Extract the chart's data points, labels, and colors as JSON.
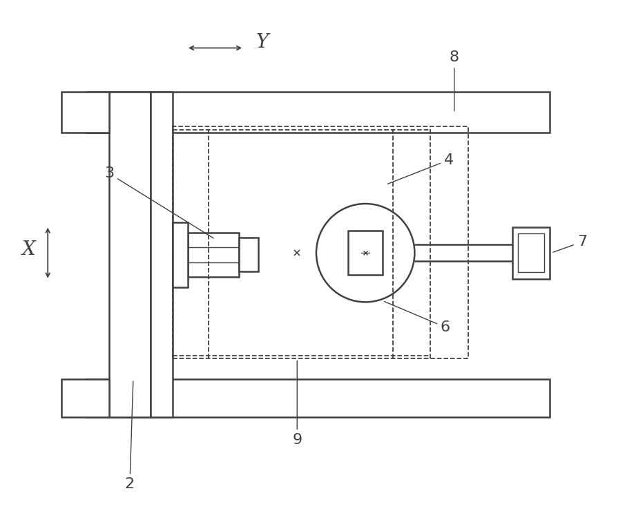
{
  "bg_color": "#ffffff",
  "line_color": "#404040",
  "fig_width": 9.05,
  "fig_height": 7.66,
  "dpi": 100,
  "lw_main": 1.8,
  "lw_dash": 1.3,
  "lw_thin": 1.0,
  "font_size_label": 16,
  "font_size_axis": 20
}
